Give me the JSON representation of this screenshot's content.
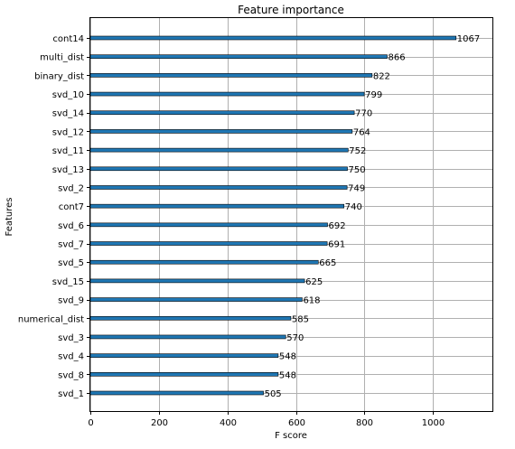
{
  "chart_data": {
    "type": "bar",
    "orientation": "horizontal",
    "title": "Feature importance",
    "xlabel": "F score",
    "ylabel": "Features",
    "xlim": [
      0,
      1173
    ],
    "xticks": [
      0,
      200,
      400,
      600,
      800,
      1000
    ],
    "grid": true,
    "bar_color": "#1f77b4",
    "bar_edge_color": "#000000",
    "categories": [
      "cont14",
      "multi_dist",
      "binary_dist",
      "svd_10",
      "svd_14",
      "svd_12",
      "svd_11",
      "svd_13",
      "svd_2",
      "cont7",
      "svd_6",
      "svd_7",
      "svd_5",
      "svd_15",
      "svd_9",
      "numerical_dist",
      "svd_3",
      "svd_4",
      "svd_8",
      "svd_1"
    ],
    "values": [
      1067,
      866,
      822,
      799,
      770,
      764,
      752,
      750,
      749,
      740,
      692,
      691,
      665,
      625,
      618,
      585,
      570,
      548,
      548,
      505
    ]
  }
}
